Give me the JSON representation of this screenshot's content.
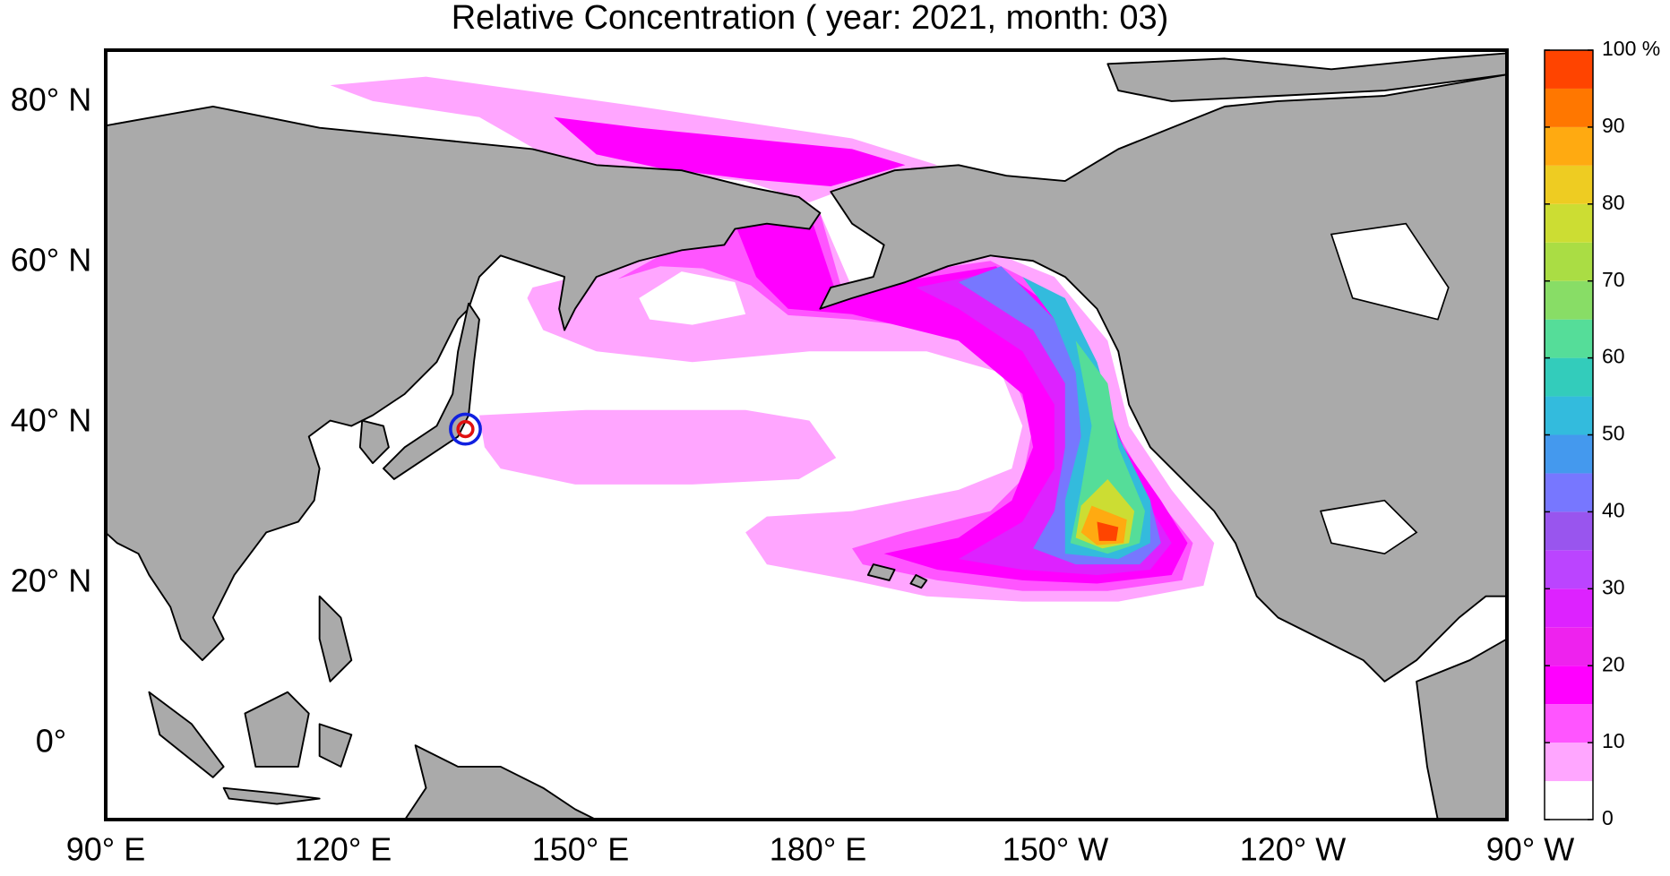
{
  "title": "Relative Concentration ( year: 2021, month: 03)",
  "map": {
    "lon_labels": [
      "90° E",
      "120° E",
      "150° E",
      "180° E",
      "150° W",
      "120° W",
      "90° W"
    ],
    "lat_labels": [
      "80° N",
      "60° N",
      "40° N",
      "20° N",
      "0°"
    ]
  },
  "colorbar": {
    "lim": [
      0,
      100
    ],
    "ticks": [
      0,
      10,
      20,
      30,
      40,
      50,
      60,
      70,
      80,
      90,
      {
        "value": 100,
        "label": "100 %"
      }
    ],
    "colors": [
      "#ffffff",
      "#ffa6ff",
      "#ff55ff",
      "#ff00ff",
      "#ee22ee",
      "#dd22ff",
      "#bb44ff",
      "#9955ee",
      "#7777ff",
      "#4499ee",
      "#33bbdd",
      "#33ccbb",
      "#55dd99",
      "#88dd66",
      "#aadd44",
      "#ccdd33",
      "#eecc22",
      "#ffaa11",
      "#ff7700",
      "#ff4400"
    ]
  }
}
